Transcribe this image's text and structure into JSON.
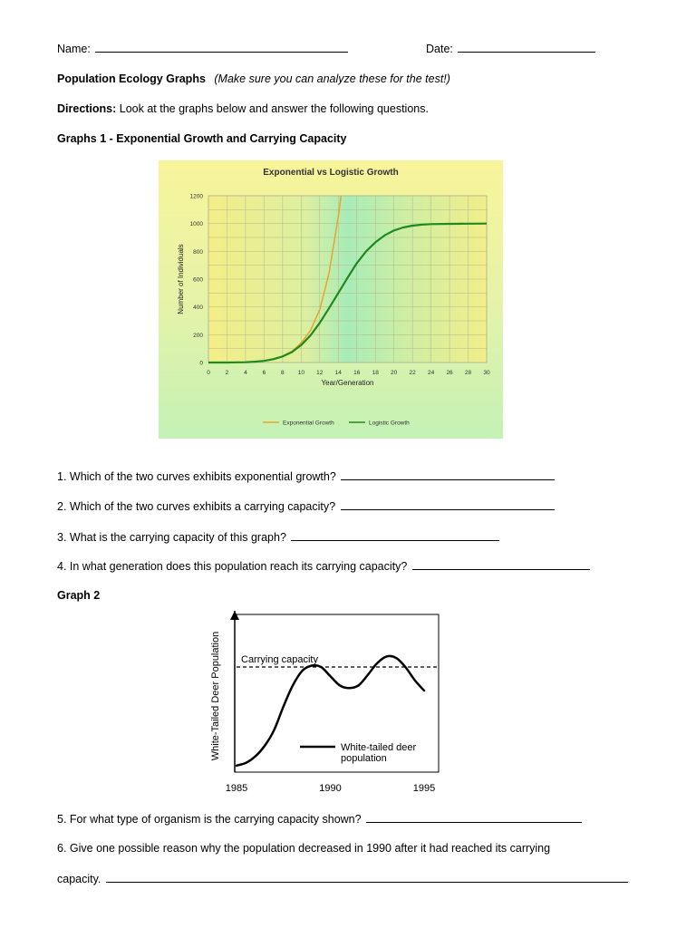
{
  "header": {
    "name_label": "Name: ",
    "date_label": "Date: ",
    "title": "Population Ecology Graphs",
    "title_note": "(Make sure you can analyze these for the test!)",
    "directions_label": "Directions:",
    "directions_text": " Look at the graphs below and answer the following questions.",
    "graph1_heading": "Graphs 1 - Exponential Growth and Carrying Capacity",
    "graph2_heading": "Graph 2"
  },
  "questions": {
    "q1": "1. Which of the two curves exhibits exponential growth? ",
    "q2": "2. Which of the two curves exhibits a carrying capacity? ",
    "q3": "3. What is the carrying capacity of this graph? ",
    "q4": "4. In what generation does this population reach its carrying capacity? ",
    "q5": "5. For what type of organism is the carrying capacity shown? ",
    "q6": "6. Give one possible reason why the population decreased in 1990 after it had reached its carrying",
    "q6_cont": "capacity. "
  },
  "chart_data": [
    {
      "type": "line",
      "title": "Exponential vs Logistic Growth",
      "xlabel": "Year/Generation",
      "ylabel": "Number of Individuals",
      "xlim": [
        0,
        30
      ],
      "ylim": [
        0,
        1200
      ],
      "x_ticks": [
        0,
        2,
        4,
        6,
        8,
        10,
        12,
        14,
        16,
        18,
        20,
        22,
        24,
        26,
        28,
        30
      ],
      "y_ticks": [
        0,
        200,
        400,
        600,
        800,
        1000,
        1200
      ],
      "grid": true,
      "legend_position": "bottom",
      "series": [
        {
          "name": "Exponential Growth",
          "color": "#e8a830",
          "x": [
            0,
            2,
            4,
            5,
            6,
            7,
            8,
            9,
            10,
            11,
            12,
            13,
            14,
            14.3
          ],
          "y": [
            0,
            0,
            2,
            6,
            12,
            24,
            45,
            80,
            140,
            230,
            380,
            640,
            1050,
            1200
          ]
        },
        {
          "name": "Logistic Growth",
          "color": "#1f8a1f",
          "x": [
            0,
            2,
            4,
            5,
            6,
            7,
            8,
            9,
            10,
            11,
            12,
            13,
            14,
            15,
            16,
            17,
            18,
            19,
            20,
            21,
            22,
            23,
            24,
            26,
            28,
            30
          ],
          "y": [
            0,
            0,
            2,
            6,
            12,
            24,
            44,
            75,
            125,
            195,
            285,
            390,
            500,
            610,
            715,
            800,
            865,
            915,
            950,
            972,
            985,
            992,
            996,
            998,
            999,
            1000
          ]
        }
      ]
    },
    {
      "type": "line",
      "title": "",
      "ylabel": "White-Tailed Deer Population",
      "x_ticks": [
        1985,
        1990,
        1995
      ],
      "xlim": [
        1985,
        1995
      ],
      "ylim": [
        0,
        1.2
      ],
      "reference_line": {
        "label": "Carrying capacity",
        "value": 0.8
      },
      "legend_label": "White-tailed deer population",
      "series": [
        {
          "name": "White-tailed deer population",
          "color": "#000000",
          "x": [
            1985,
            1985.5,
            1986,
            1986.5,
            1987,
            1987.5,
            1988,
            1988.5,
            1989,
            1989.5,
            1990,
            1990.5,
            1991,
            1991.5,
            1992,
            1992.5,
            1993,
            1993.5,
            1994,
            1994.5,
            1995
          ],
          "y": [
            0.05,
            0.07,
            0.12,
            0.2,
            0.32,
            0.5,
            0.66,
            0.77,
            0.81,
            0.8,
            0.73,
            0.66,
            0.64,
            0.66,
            0.74,
            0.83,
            0.88,
            0.87,
            0.8,
            0.7,
            0.62
          ]
        }
      ]
    }
  ]
}
